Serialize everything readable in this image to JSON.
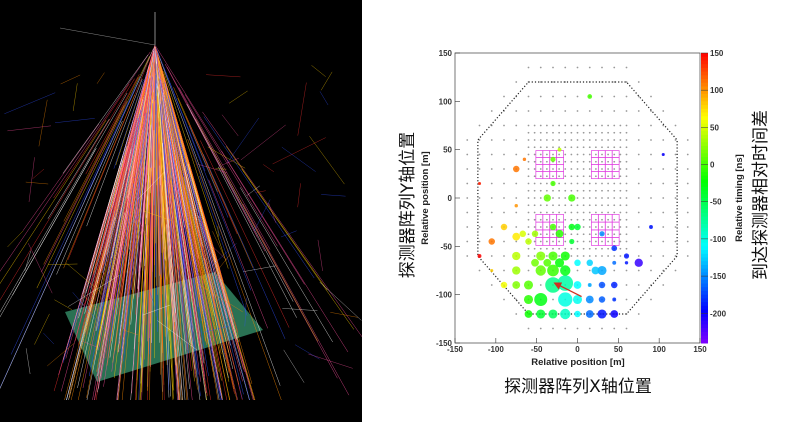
{
  "left_panel": {
    "description_label": "",
    "plane_color": "#2f7d5c",
    "track_colors": [
      "#ff3030",
      "#ffd000",
      "#ff8c00",
      "#3050ff",
      "#ffffff",
      "#ff50a0"
    ]
  },
  "chart_data": {
    "type": "scatter",
    "xlabel": "Relative position [m]",
    "ylabel": "Relative position [m]",
    "colorbar_label": "Relative timing [ns]",
    "xlabel_cn": "探测器阵列X轴位置",
    "ylabel_cn": "探测器阵列Y轴位置",
    "colorbar_label_cn": "到达探测器相对时间差",
    "xlim": [
      -150,
      150
    ],
    "ylim": [
      -150,
      150
    ],
    "xticks": [
      -150,
      -100,
      -50,
      0,
      50,
      100,
      150
    ],
    "yticks": [
      150,
      100,
      50,
      0,
      -50,
      -100,
      -150
    ],
    "colorbar_range": [
      -240,
      150
    ],
    "colorbar_ticks": [
      150,
      100,
      50,
      0,
      -50,
      -100,
      -150,
      -200
    ],
    "colormap": "rainbow",
    "array_boundary": [
      [
        -60,
        120
      ],
      [
        60,
        120
      ],
      [
        122,
        60
      ],
      [
        122,
        -60
      ],
      [
        60,
        -120
      ],
      [
        -60,
        -120
      ],
      [
        -122,
        -60
      ],
      [
        -122,
        60
      ]
    ],
    "module_blocks": [
      {
        "x": [
          -51,
          -17
        ],
        "y": [
          20,
          49
        ]
      },
      {
        "x": [
          17,
          51
        ],
        "y": [
          20,
          49
        ]
      },
      {
        "x": [
          -51,
          -17
        ],
        "y": [
          -49,
          -17
        ]
      },
      {
        "x": [
          17,
          51
        ],
        "y": [
          -49,
          -17
        ]
      }
    ],
    "module_color": "#e040e0",
    "direction_arrow": {
      "from": [
        5,
        -102
      ],
      "to": [
        -28,
        -88
      ],
      "color": "#d03020"
    },
    "hits": [
      {
        "x": -120,
        "y": 15,
        "t": 140,
        "s": 1.2
      },
      {
        "x": -120,
        "y": -60,
        "t": 150,
        "s": 1.5
      },
      {
        "x": -105,
        "y": -45,
        "t": 110,
        "s": 2.5
      },
      {
        "x": -105,
        "y": -75,
        "t": 80,
        "s": 1.2
      },
      {
        "x": -90,
        "y": -30,
        "t": 80,
        "s": 2.5
      },
      {
        "x": -90,
        "y": -90,
        "t": 60,
        "s": 2.5
      },
      {
        "x": -75,
        "y": 30,
        "t": 110,
        "s": 2.5
      },
      {
        "x": -75,
        "y": -8,
        "t": 100,
        "s": 1.3
      },
      {
        "x": -65,
        "y": 40,
        "t": 110,
        "s": 1.3
      },
      {
        "x": -75,
        "y": -40,
        "t": 70,
        "s": 3
      },
      {
        "x": -67,
        "y": -37,
        "t": 50,
        "s": 2.5
      },
      {
        "x": -75,
        "y": -60,
        "t": 40,
        "s": 3.2
      },
      {
        "x": -75,
        "y": -75,
        "t": 30,
        "s": 3.2
      },
      {
        "x": -75,
        "y": -90,
        "t": 20,
        "s": 3
      },
      {
        "x": -60,
        "y": -90,
        "t": 5,
        "s": 3.5
      },
      {
        "x": -60,
        "y": -105,
        "t": -10,
        "s": 3.5
      },
      {
        "x": -60,
        "y": -120,
        "t": -20,
        "s": 3
      },
      {
        "x": -45,
        "y": -105,
        "t": -30,
        "s": 5
      },
      {
        "x": -45,
        "y": -120,
        "t": -40,
        "s": 3.5
      },
      {
        "x": -30,
        "y": -120,
        "t": -55,
        "s": 3.5
      },
      {
        "x": -15,
        "y": -120,
        "t": -90,
        "s": 4
      },
      {
        "x": 0,
        "y": -120,
        "t": -110,
        "s": 2.5
      },
      {
        "x": 15,
        "y": -120,
        "t": -160,
        "s": 3
      },
      {
        "x": 30,
        "y": -120,
        "t": -190,
        "s": 3.5
      },
      {
        "x": 45,
        "y": -120,
        "t": -200,
        "s": 3
      },
      {
        "x": -30,
        "y": -90,
        "t": -70,
        "s": 6
      },
      {
        "x": -15,
        "y": -88,
        "t": -80,
        "s": 6
      },
      {
        "x": -15,
        "y": -105,
        "t": -100,
        "s": 5.5
      },
      {
        "x": 0,
        "y": -105,
        "t": -105,
        "s": 3.5
      },
      {
        "x": 15,
        "y": -105,
        "t": -150,
        "s": 3
      },
      {
        "x": 30,
        "y": -105,
        "t": -165,
        "s": 2.5
      },
      {
        "x": 45,
        "y": -105,
        "t": -180,
        "s": 1.5
      },
      {
        "x": 0,
        "y": -90,
        "t": -110,
        "s": 3
      },
      {
        "x": 15,
        "y": -90,
        "t": -140,
        "s": 1.5
      },
      {
        "x": 30,
        "y": -90,
        "t": -170,
        "s": 2.5
      },
      {
        "x": 45,
        "y": -90,
        "t": -185,
        "s": 2.5
      },
      {
        "x": 30,
        "y": -75,
        "t": -140,
        "s": 3.5
      },
      {
        "x": 22,
        "y": -75,
        "t": -130,
        "s": 3
      },
      {
        "x": 15,
        "y": -67,
        "t": -125,
        "s": 2.5
      },
      {
        "x": 0,
        "y": -67,
        "t": -110,
        "s": 2.5
      },
      {
        "x": 45,
        "y": -67,
        "t": -160,
        "s": 1.5
      },
      {
        "x": 60,
        "y": -67,
        "t": -190,
        "s": 1.3
      },
      {
        "x": 75,
        "y": -67,
        "t": -215,
        "s": 3.2
      },
      {
        "x": 60,
        "y": -60,
        "t": -190,
        "s": 2
      },
      {
        "x": 45,
        "y": -52,
        "t": -180,
        "s": 2.2
      },
      {
        "x": 30,
        "y": -37,
        "t": -150,
        "s": 2
      },
      {
        "x": 90,
        "y": -30,
        "t": -190,
        "s": 1.5
      },
      {
        "x": 105,
        "y": 45,
        "t": -200,
        "s": 1.2
      },
      {
        "x": -45,
        "y": -60,
        "t": 20,
        "s": 3.5
      },
      {
        "x": -30,
        "y": -60,
        "t": 0,
        "s": 3.5
      },
      {
        "x": -15,
        "y": -60,
        "t": -20,
        "s": 3.5
      },
      {
        "x": -45,
        "y": -75,
        "t": 10,
        "s": 4
      },
      {
        "x": -30,
        "y": -75,
        "t": -5,
        "s": 4.5
      },
      {
        "x": -15,
        "y": -75,
        "t": -30,
        "s": 4
      },
      {
        "x": -52,
        "y": -67,
        "t": 15,
        "s": 3
      },
      {
        "x": -37,
        "y": -67,
        "t": 5,
        "s": 3
      },
      {
        "x": -22,
        "y": -67,
        "t": -25,
        "s": 3.5
      },
      {
        "x": -30,
        "y": -30,
        "t": 0,
        "s": 2.5
      },
      {
        "x": -22,
        "y": -37,
        "t": -10,
        "s": 3
      },
      {
        "x": -7,
        "y": -30,
        "t": -30,
        "s": 2.5
      },
      {
        "x": 0,
        "y": -30,
        "t": -40,
        "s": 2.5
      },
      {
        "x": -7,
        "y": -45,
        "t": -40,
        "s": 2
      },
      {
        "x": -37,
        "y": 0,
        "t": 10,
        "s": 2.8
      },
      {
        "x": -7,
        "y": 0,
        "t": 0,
        "s": 2.8
      },
      {
        "x": -30,
        "y": 15,
        "t": 0,
        "s": 2
      },
      {
        "x": -30,
        "y": 40,
        "t": 10,
        "s": 2
      },
      {
        "x": -22,
        "y": 50,
        "t": 40,
        "s": 1.5
      },
      {
        "x": 15,
        "y": 105,
        "t": 0,
        "s": 1.8
      },
      {
        "x": -52,
        "y": -37,
        "t": 30,
        "s": 2.5
      },
      {
        "x": -60,
        "y": -45,
        "t": 40,
        "s": 2.5
      }
    ]
  }
}
